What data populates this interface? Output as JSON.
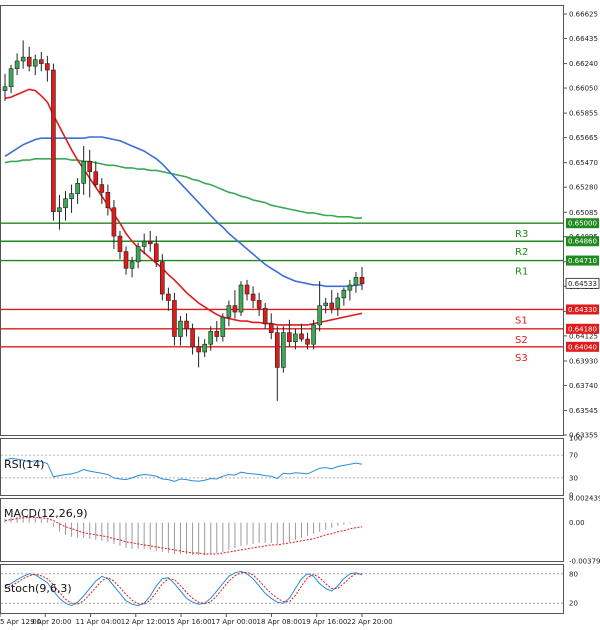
{
  "chart_data": [
    {
      "type": "candlestick",
      "ylim": [
        0.63355,
        0.66695
      ],
      "y_ticks": [
        "0.66625",
        "0.66435",
        "0.66240",
        "0.66050",
        "0.65855",
        "0.65665",
        "0.65470",
        "0.65280",
        "0.65085",
        "0.64895",
        "0.64700",
        "0.64510",
        "0.64315",
        "0.64125",
        "0.63930",
        "0.63740",
        "0.63545",
        "0.63355"
      ],
      "x_labels": [
        "5 Apr 12:00",
        "9 Apr 20:00",
        "11 Apr 04:00",
        "12 Apr 12:00",
        "15 Apr 16:00",
        "17 Apr 00:00",
        "18 Apr 08:00",
        "19 Apr 16:00",
        "22 Apr 20:00"
      ],
      "last_price": "0.64533",
      "resistance": [
        {
          "name": "R3",
          "value": 0.65,
          "tag": "0.65000"
        },
        {
          "name": "R2",
          "value": 0.6486,
          "tag": "0.64860"
        },
        {
          "name": "R1",
          "value": 0.6471,
          "tag": "0.64710"
        }
      ],
      "support": [
        {
          "name": "S1",
          "value": 0.6433,
          "tag": "0.64330"
        },
        {
          "name": "S2",
          "value": 0.6418,
          "tag": "0.64180"
        },
        {
          "name": "S3",
          "value": 0.6404,
          "tag": "0.64040"
        }
      ],
      "candles": [
        [
          0.6603,
          0.6616,
          0.6595,
          0.6606
        ],
        [
          0.6606,
          0.6623,
          0.6601,
          0.662
        ],
        [
          0.662,
          0.6632,
          0.6615,
          0.6626
        ],
        [
          0.6626,
          0.6642,
          0.662,
          0.6629
        ],
        [
          0.6629,
          0.6637,
          0.6618,
          0.6622
        ],
        [
          0.6622,
          0.6631,
          0.6615,
          0.6627
        ],
        [
          0.6627,
          0.6633,
          0.6618,
          0.6624
        ],
        [
          0.6624,
          0.663,
          0.661,
          0.6619
        ],
        [
          0.6619,
          0.6624,
          0.6502,
          0.6509
        ],
        [
          0.6509,
          0.6522,
          0.6495,
          0.6512
        ],
        [
          0.6512,
          0.6525,
          0.6502,
          0.6519
        ],
        [
          0.6519,
          0.653,
          0.6508,
          0.6523
        ],
        [
          0.6523,
          0.6535,
          0.6515,
          0.6531
        ],
        [
          0.6531,
          0.656,
          0.6522,
          0.6548
        ],
        [
          0.6548,
          0.6557,
          0.652,
          0.654
        ],
        [
          0.654,
          0.6548,
          0.6528,
          0.653
        ],
        [
          0.653,
          0.6535,
          0.6515,
          0.6524
        ],
        [
          0.6524,
          0.653,
          0.6506,
          0.6512
        ],
        [
          0.6512,
          0.6518,
          0.648,
          0.649
        ],
        [
          0.649,
          0.6494,
          0.6472,
          0.6478
        ],
        [
          0.6478,
          0.6482,
          0.646,
          0.6465
        ],
        [
          0.6465,
          0.6474,
          0.6458,
          0.647
        ],
        [
          0.647,
          0.6485,
          0.6465,
          0.6482
        ],
        [
          0.6482,
          0.6492,
          0.6476,
          0.6486
        ],
        [
          0.6486,
          0.6494,
          0.6478,
          0.6484
        ],
        [
          0.6484,
          0.649,
          0.6466,
          0.647
        ],
        [
          0.647,
          0.6476,
          0.644,
          0.6445
        ],
        [
          0.6445,
          0.645,
          0.6432,
          0.644
        ],
        [
          0.644,
          0.6446,
          0.6405,
          0.6412
        ],
        [
          0.6412,
          0.6428,
          0.6405,
          0.6424
        ],
        [
          0.6424,
          0.643,
          0.6412,
          0.6418
        ],
        [
          0.6418,
          0.6422,
          0.6398,
          0.6404
        ],
        [
          0.6404,
          0.6412,
          0.6388,
          0.64
        ],
        [
          0.64,
          0.641,
          0.6396,
          0.6406
        ],
        [
          0.6406,
          0.642,
          0.6401,
          0.6416
        ],
        [
          0.6416,
          0.6424,
          0.6408,
          0.6412
        ],
        [
          0.6412,
          0.643,
          0.6408,
          0.6427
        ],
        [
          0.6427,
          0.644,
          0.642,
          0.6436
        ],
        [
          0.6436,
          0.6448,
          0.6426,
          0.6431
        ],
        [
          0.6431,
          0.6455,
          0.6428,
          0.6452
        ],
        [
          0.6452,
          0.6456,
          0.644,
          0.6445
        ],
        [
          0.6445,
          0.6451,
          0.6434,
          0.644
        ],
        [
          0.644,
          0.6446,
          0.6428,
          0.6434
        ],
        [
          0.6434,
          0.6438,
          0.6418,
          0.6422
        ],
        [
          0.6422,
          0.643,
          0.641,
          0.6415
        ],
        [
          0.6415,
          0.642,
          0.6362,
          0.6388
        ],
        [
          0.6388,
          0.642,
          0.6384,
          0.6415
        ],
        [
          0.6415,
          0.6425,
          0.6404,
          0.6408
        ],
        [
          0.6408,
          0.6418,
          0.6402,
          0.6414
        ],
        [
          0.6414,
          0.6422,
          0.6408,
          0.641
        ],
        [
          0.641,
          0.6415,
          0.6402,
          0.6406
        ],
        [
          0.6406,
          0.6425,
          0.6402,
          0.6421
        ],
        [
          0.6421,
          0.6455,
          0.6416,
          0.6436
        ],
        [
          0.6436,
          0.6442,
          0.643,
          0.6438
        ],
        [
          0.6438,
          0.6448,
          0.643,
          0.6434
        ],
        [
          0.6434,
          0.6446,
          0.6428,
          0.6442
        ],
        [
          0.6442,
          0.645,
          0.6436,
          0.6448
        ],
        [
          0.6448,
          0.6456,
          0.644,
          0.6452
        ],
        [
          0.6452,
          0.6462,
          0.6446,
          0.6458
        ],
        [
          0.6458,
          0.6466,
          0.6448,
          0.6453
        ]
      ],
      "ma_fast_red": [
        0.6597,
        0.6598,
        0.66,
        0.6602,
        0.6604,
        0.6603,
        0.6599,
        0.6594,
        0.6584,
        0.6575,
        0.6566,
        0.6557,
        0.6549,
        0.6542,
        0.6535,
        0.6528,
        0.6521,
        0.6514,
        0.6507,
        0.65,
        0.6492,
        0.6486,
        0.6481,
        0.6477,
        0.6473,
        0.6469,
        0.6465,
        0.646,
        0.6456,
        0.6451,
        0.6446,
        0.6442,
        0.6438,
        0.6435,
        0.6432,
        0.6429,
        0.6427,
        0.6426,
        0.6425,
        0.6424,
        0.6424,
        0.6423,
        0.6423,
        0.6422,
        0.6422,
        0.6421,
        0.6421,
        0.6421,
        0.6421,
        0.6421,
        0.6421,
        0.6422,
        0.6423,
        0.6424,
        0.6425,
        0.6426,
        0.6427,
        0.6428,
        0.6429,
        0.643
      ],
      "ma_mid_blue": [
        0.6552,
        0.6555,
        0.6558,
        0.6561,
        0.6563,
        0.6565,
        0.6566,
        0.6566,
        0.6566,
        0.6566,
        0.6566,
        0.6566,
        0.6566,
        0.6566,
        0.6567,
        0.6567,
        0.6567,
        0.6566,
        0.6565,
        0.6564,
        0.6562,
        0.656,
        0.6558,
        0.6556,
        0.6553,
        0.655,
        0.6546,
        0.6541,
        0.6536,
        0.6531,
        0.6526,
        0.6521,
        0.6516,
        0.6511,
        0.6506,
        0.6501,
        0.6497,
        0.6492,
        0.6488,
        0.6484,
        0.648,
        0.6476,
        0.6472,
        0.6468,
        0.6465,
        0.6462,
        0.6459,
        0.6457,
        0.6455,
        0.6454,
        0.6453,
        0.6452,
        0.6452,
        0.6451,
        0.6451,
        0.6451,
        0.6451,
        0.6451,
        0.6452,
        0.6452
      ],
      "ma_slow_green": [
        0.6547,
        0.6548,
        0.6548,
        0.6549,
        0.6549,
        0.655,
        0.655,
        0.655,
        0.655,
        0.655,
        0.655,
        0.6549,
        0.6549,
        0.6548,
        0.6548,
        0.6547,
        0.6546,
        0.6545,
        0.6545,
        0.6544,
        0.6543,
        0.6543,
        0.6542,
        0.6542,
        0.6541,
        0.6541,
        0.654,
        0.6539,
        0.6538,
        0.6537,
        0.6536,
        0.6534,
        0.6533,
        0.6531,
        0.653,
        0.6528,
        0.6526,
        0.6524,
        0.6523,
        0.6521,
        0.652,
        0.6518,
        0.6517,
        0.6516,
        0.6514,
        0.6513,
        0.6512,
        0.6511,
        0.651,
        0.6509,
        0.6508,
        0.6508,
        0.6507,
        0.6506,
        0.6506,
        0.6505,
        0.6505,
        0.6505,
        0.6504,
        0.6504
      ]
    },
    {
      "type": "line",
      "title": "RSI(14)",
      "y_ticks": [
        "100",
        "70",
        "30",
        "0"
      ],
      "ylim": [
        0,
        100
      ],
      "values": [
        62,
        64,
        63,
        61,
        58,
        60,
        59,
        55,
        32,
        34,
        36,
        37,
        40,
        45,
        42,
        40,
        38,
        36,
        30,
        28,
        27,
        30,
        34,
        36,
        35,
        33,
        28,
        27,
        24,
        28,
        27,
        25,
        24,
        26,
        29,
        28,
        33,
        36,
        35,
        40,
        38,
        37,
        36,
        34,
        33,
        29,
        38,
        37,
        39,
        38,
        37,
        42,
        47,
        48,
        46,
        50,
        52,
        54,
        56,
        54
      ]
    },
    {
      "type": "bar",
      "title": "MACD(12,26,9)",
      "y_ticks": [
        "0.002439",
        "0.00",
        "-0.003794"
      ],
      "ylim": [
        -0.003794,
        0.002439
      ],
      "histogram": [
        0.0004,
        0.0005,
        0.0006,
        0.0006,
        0.0006,
        0.0005,
        0.0004,
        0.0003,
        -0.0004,
        -0.0009,
        -0.0012,
        -0.0014,
        -0.0015,
        -0.0015,
        -0.0016,
        -0.0017,
        -0.0018,
        -0.0019,
        -0.0021,
        -0.0023,
        -0.0025,
        -0.0026,
        -0.0026,
        -0.0026,
        -0.0027,
        -0.0028,
        -0.0029,
        -0.003,
        -0.0031,
        -0.0031,
        -0.0031,
        -0.0032,
        -0.0032,
        -0.0032,
        -0.0031,
        -0.003,
        -0.0029,
        -0.0027,
        -0.0025,
        -0.0023,
        -0.0022,
        -0.0021,
        -0.002,
        -0.002,
        -0.002,
        -0.0021,
        -0.002,
        -0.0019,
        -0.0017,
        -0.0015,
        -0.0013,
        -0.0011,
        -0.0009,
        -0.0007,
        -0.0005,
        -0.0003,
        -0.0002,
        -0.0001,
        0.0,
        0.0
      ],
      "signal": [
        0.0002,
        0.0003,
        0.0004,
        0.0005,
        0.0005,
        0.0005,
        0.0005,
        0.0004,
        0.0002,
        -0.0001,
        -0.0004,
        -0.0006,
        -0.0008,
        -0.001,
        -0.0011,
        -0.0012,
        -0.0013,
        -0.0014,
        -0.0016,
        -0.0017,
        -0.0019,
        -0.002,
        -0.0021,
        -0.0022,
        -0.0023,
        -0.0024,
        -0.0025,
        -0.0026,
        -0.0027,
        -0.0028,
        -0.0029,
        -0.003,
        -0.003,
        -0.0031,
        -0.0031,
        -0.0031,
        -0.003,
        -0.0029,
        -0.0028,
        -0.0027,
        -0.0026,
        -0.0025,
        -0.0024,
        -0.0023,
        -0.0022,
        -0.0022,
        -0.0021,
        -0.002,
        -0.0019,
        -0.0018,
        -0.0017,
        -0.0016,
        -0.0014,
        -0.0012,
        -0.0011,
        -0.0009,
        -0.0008,
        -0.0006,
        -0.0005,
        -0.0004
      ]
    },
    {
      "type": "line",
      "title": "Stoch(9,6,3)",
      "y_ticks": [
        "80",
        "20"
      ],
      "ylim": [
        0,
        100
      ],
      "k": [
        55,
        60,
        68,
        75,
        80,
        78,
        70,
        62,
        45,
        30,
        20,
        15,
        22,
        35,
        50,
        65,
        75,
        70,
        55,
        40,
        25,
        18,
        15,
        20,
        35,
        55,
        70,
        72,
        60,
        45,
        30,
        22,
        18,
        20,
        30,
        45,
        60,
        75,
        82,
        85,
        80,
        70,
        55,
        40,
        30,
        22,
        20,
        30,
        50,
        70,
        80,
        75,
        60,
        50,
        45,
        55,
        70,
        80,
        82,
        78
      ],
      "d": [
        50,
        55,
        62,
        70,
        76,
        79,
        76,
        70,
        58,
        42,
        28,
        20,
        18,
        25,
        38,
        52,
        66,
        72,
        65,
        52,
        38,
        26,
        19,
        18,
        26,
        42,
        60,
        70,
        68,
        56,
        42,
        30,
        22,
        19,
        23,
        35,
        50,
        65,
        76,
        82,
        83,
        78,
        66,
        52,
        40,
        30,
        23,
        23,
        36,
        55,
        72,
        79,
        72,
        60,
        50,
        50,
        60,
        72,
        80,
        80
      ]
    }
  ]
}
